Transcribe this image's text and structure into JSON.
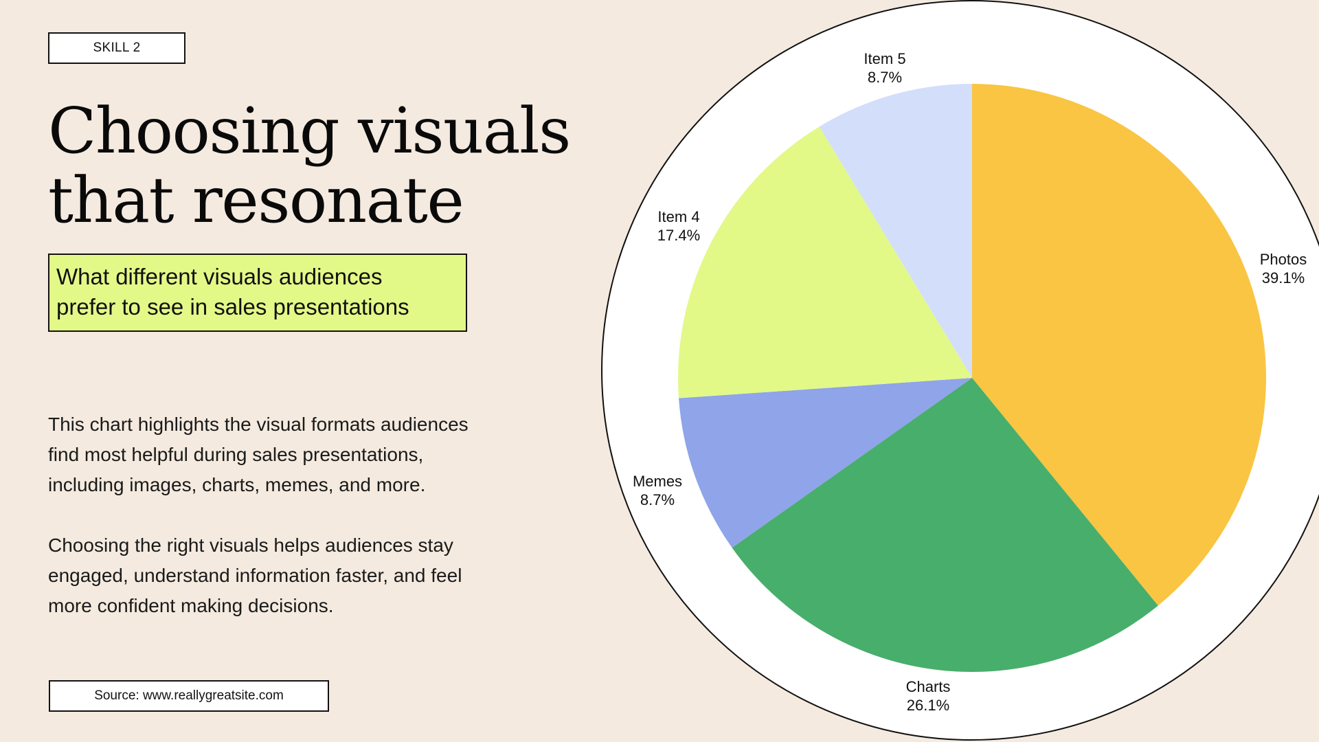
{
  "slide": {
    "tag": "SKILL 2",
    "title_lines": [
      "Choosing visuals",
      "that resonate"
    ],
    "subtitle_lines": [
      "What different visuals audiences",
      "prefer to see in sales presentations"
    ],
    "paragraph1_lines": [
      "This chart highlights the visual formats audiences",
      "find most helpful during sales presentations,",
      "including images, charts, memes, and more."
    ],
    "paragraph2_lines": [
      "Choosing the right visuals helps audiences stay",
      "engaged, understand information faster, and feel",
      "more confident making decisions."
    ],
    "source": "Source: www.reallygreatsite.com"
  },
  "colors": {
    "background": "#F4EADF",
    "subtitle_highlight": "#E2F988",
    "ring": "#FFFFFF",
    "outline": "#111111"
  },
  "chart_data": {
    "type": "pie",
    "title": "What different visuals audiences prefer to see in sales presentations",
    "categories": [
      "Photos",
      "Charts",
      "Memes",
      "Item 4",
      "Item 5"
    ],
    "values": [
      39.1,
      26.1,
      8.7,
      17.4,
      8.7
    ],
    "value_labels": [
      "39.1%",
      "26.1%",
      "8.7%",
      "17.4%",
      "8.7%"
    ],
    "colors": [
      "#F9C542",
      "#47AE6B",
      "#8FA4E9",
      "#E2F988",
      "#D3DEFB"
    ],
    "start_angle": "12 o'clock",
    "direction": "clockwise",
    "legend": "none (labels outside slices)"
  }
}
